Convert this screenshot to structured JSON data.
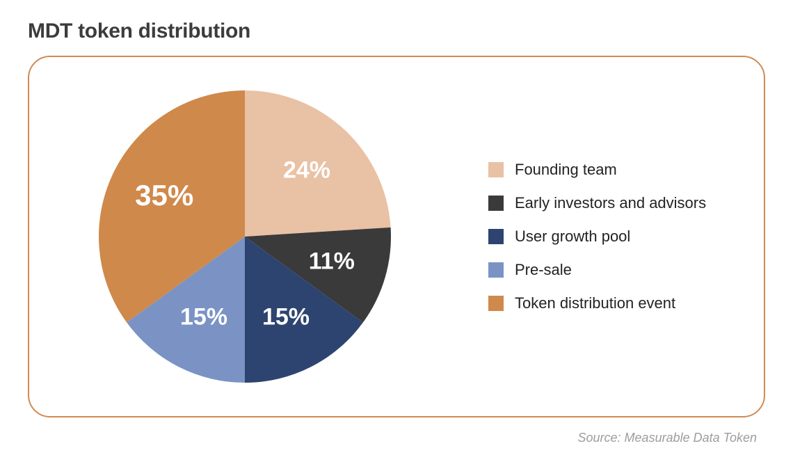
{
  "title": "MDT token distribution",
  "source_line": "Source: Measurable Data Token",
  "card": {
    "border_color": "#d08a53",
    "border_radius": 32,
    "background": "#ffffff"
  },
  "chart": {
    "type": "pie",
    "radius": 210,
    "start_angle_deg": 0,
    "direction": "clockwise",
    "label_radius": 130,
    "label_color": "#ffffff",
    "label_fontsize": 34,
    "label_fontsize_large": 42,
    "slices": [
      {
        "key": "founding_team",
        "label": "Founding team",
        "value": 24,
        "display": "24%",
        "color": "#e9c1a4"
      },
      {
        "key": "early_investors",
        "label": "Early investors and advisors",
        "value": 11,
        "display": "11%",
        "color": "#3a3a3a"
      },
      {
        "key": "user_growth",
        "label": "User growth pool",
        "value": 15,
        "display": "15%",
        "color": "#2e4470"
      },
      {
        "key": "pre_sale",
        "label": "Pre-sale",
        "value": 15,
        "display": "15%",
        "color": "#7a93c4"
      },
      {
        "key": "token_event",
        "label": "Token distribution event",
        "value": 35,
        "display": "35%",
        "color": "#cf894b"
      }
    ]
  },
  "legend": {
    "title_color": "#222222",
    "fontsize": 22,
    "swatch_size": 22,
    "gap": 22
  }
}
